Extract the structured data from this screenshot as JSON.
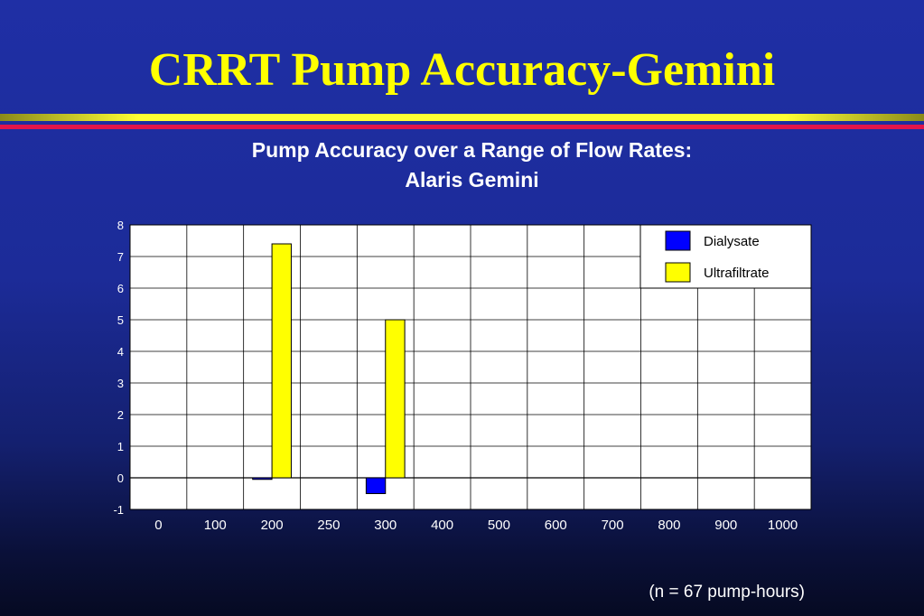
{
  "slide": {
    "title": "CRRT Pump Accuracy-Gemini",
    "footnote": "(n = 67 pump-hours)"
  },
  "colors": {
    "background": "#1f2fa5",
    "title": "#ffff00",
    "dialysate": "#0000ff",
    "ultrafiltrate": "#ffff00",
    "accent_rule": "#ffff33",
    "accent_rule_red": "#e2154a"
  },
  "chart_data": {
    "type": "bar",
    "title_lines": [
      "Pump Accuracy over a Range of Flow Rates:",
      "Alaris Gemini"
    ],
    "xlabel": "",
    "ylabel": "",
    "categories": [
      "0",
      "100",
      "200",
      "250",
      "300",
      "400",
      "500",
      "600",
      "700",
      "800",
      "900",
      "1000"
    ],
    "series": [
      {
        "name": "Dialysate",
        "color": "#0000ff",
        "values": [
          0,
          0,
          -0.05,
          0,
          -0.5,
          0,
          0,
          0,
          0,
          0,
          0,
          0
        ]
      },
      {
        "name": "Ultrafiltrate",
        "color": "#ffff00",
        "values": [
          0,
          0,
          7.4,
          0,
          5.0,
          0,
          0,
          0,
          0,
          0,
          0,
          0
        ]
      }
    ],
    "ylim": [
      -1,
      8
    ],
    "yticks": [
      "8",
      "7",
      "6",
      "5",
      "4",
      "3",
      "2",
      "1",
      "0",
      "-1"
    ],
    "grid": true,
    "legend": "top-right"
  }
}
